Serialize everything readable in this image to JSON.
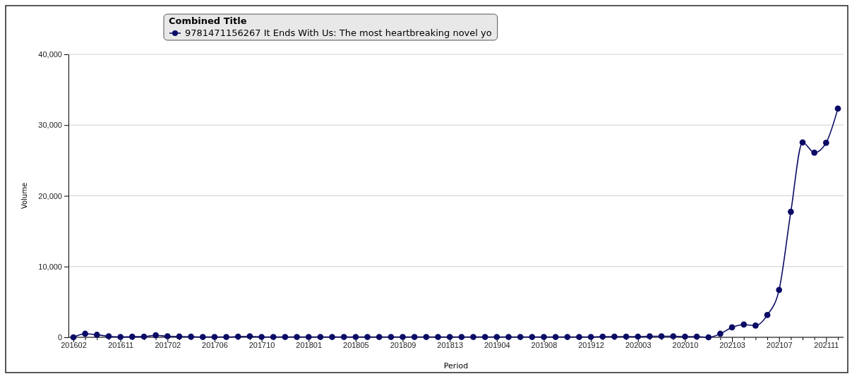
{
  "chart_data": {
    "type": "line",
    "xlabel": "Period",
    "ylabel": "Volume",
    "legend_title": "Combined Title",
    "legend": "top",
    "categories": [
      "201602",
      null,
      null,
      null,
      "201611",
      null,
      null,
      null,
      "201702",
      null,
      null,
      null,
      "201706",
      null,
      null,
      null,
      "201710",
      null,
      null,
      null,
      "201801",
      null,
      null,
      null,
      "201805",
      null,
      null,
      null,
      "201809",
      null,
      null,
      null,
      "201813",
      null,
      null,
      null,
      "201904",
      null,
      null,
      null,
      "201908",
      null,
      null,
      null,
      "201912",
      null,
      null,
      null,
      "202003",
      null,
      null,
      null,
      "202010",
      null,
      null,
      null,
      "202103",
      null,
      null,
      null,
      "202107",
      null,
      null,
      null,
      "202111",
      null
    ],
    "series": [
      {
        "name": "9781471156267  It Ends With Us: The most heartbreaking novel yo",
        "color": "#0b0b66",
        "values": [
          0,
          500,
          350,
          150,
          50,
          80,
          100,
          280,
          150,
          120,
          80,
          50,
          50,
          50,
          100,
          150,
          50,
          50,
          50,
          50,
          50,
          50,
          50,
          50,
          50,
          50,
          50,
          50,
          50,
          50,
          50,
          50,
          50,
          50,
          50,
          50,
          50,
          50,
          50,
          50,
          50,
          50,
          50,
          50,
          50,
          100,
          100,
          100,
          100,
          150,
          150,
          150,
          100,
          100,
          0,
          500,
          1400,
          1800,
          1650,
          3150,
          6700,
          17750,
          27550,
          26100,
          27500,
          32330
        ]
      }
    ],
    "ylim": [
      0,
      40000
    ],
    "yticks": [
      {
        "value": 0,
        "label": "0"
      },
      {
        "value": 10000,
        "label": "10,000"
      },
      {
        "value": 20000,
        "label": "20,000"
      },
      {
        "value": 30000,
        "label": "30,000"
      },
      {
        "value": 40000,
        "label": "40,000"
      }
    ],
    "grid": "y",
    "marker": "circle",
    "line_style": "solid"
  }
}
